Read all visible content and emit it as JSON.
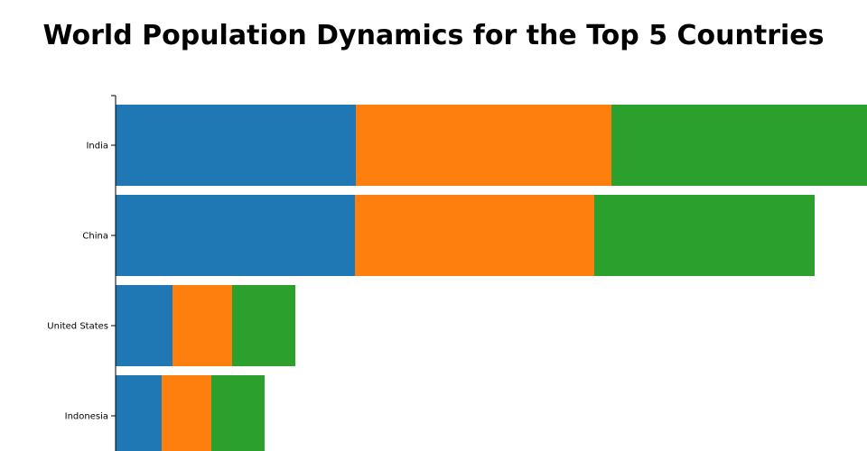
{
  "chart_data": {
    "type": "bar",
    "orientation": "horizontal",
    "stacked": true,
    "title": "World Population Dynamics for the Top 5 Countries",
    "categories": [
      "India",
      "China",
      "United States",
      "Indonesia"
    ],
    "series": [
      {
        "color": "#1f77b4",
        "values": [
          266,
          265,
          63,
          51
        ]
      },
      {
        "color": "#ff7f0e",
        "values": [
          283,
          265,
          66,
          55
        ]
      },
      {
        "color": "#2ca02c",
        "values": [
          284,
          244,
          70,
          59
        ]
      }
    ],
    "xlim": [
      0,
      832
    ],
    "grid": false,
    "legend": "none"
  }
}
